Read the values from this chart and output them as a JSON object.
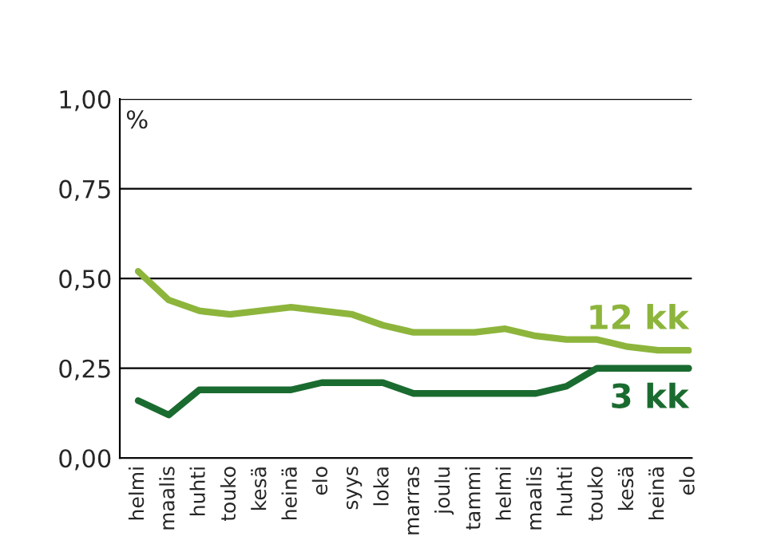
{
  "chart_data": {
    "type": "line",
    "ylabel": "%",
    "categories": [
      "helmi",
      "maalis",
      "huhti",
      "touko",
      "kesä",
      "heinä",
      "elo",
      "syys",
      "loka",
      "marras",
      "joulu",
      "tammi",
      "helmi",
      "maalis",
      "huhti",
      "touko",
      "kesä",
      "heinä",
      "elo"
    ],
    "series": [
      {
        "name": "12 kk",
        "color": "#8db53c",
        "values": [
          0.52,
          0.44,
          0.41,
          0.4,
          0.41,
          0.42,
          0.41,
          0.4,
          0.37,
          0.35,
          0.35,
          0.35,
          0.36,
          0.34,
          0.33,
          0.33,
          0.31,
          0.3,
          0.3
        ]
      },
      {
        "name": "3 kk",
        "color": "#1a6b2f",
        "values": [
          0.16,
          0.12,
          0.19,
          0.19,
          0.19,
          0.19,
          0.21,
          0.21,
          0.21,
          0.18,
          0.18,
          0.18,
          0.18,
          0.18,
          0.2,
          0.25,
          0.25,
          0.25,
          0.25
        ]
      }
    ],
    "ylim": [
      0,
      1
    ],
    "yticks": [
      {
        "value": 0,
        "label": "0,00"
      },
      {
        "value": 0.25,
        "label": "0,25"
      },
      {
        "value": 0.5,
        "label": "0,50"
      },
      {
        "value": 0.75,
        "label": "0,75"
      },
      {
        "value": 1,
        "label": "1,00"
      }
    ],
    "grid": "y",
    "legend": false,
    "marker": "none",
    "line_style": "solid"
  }
}
